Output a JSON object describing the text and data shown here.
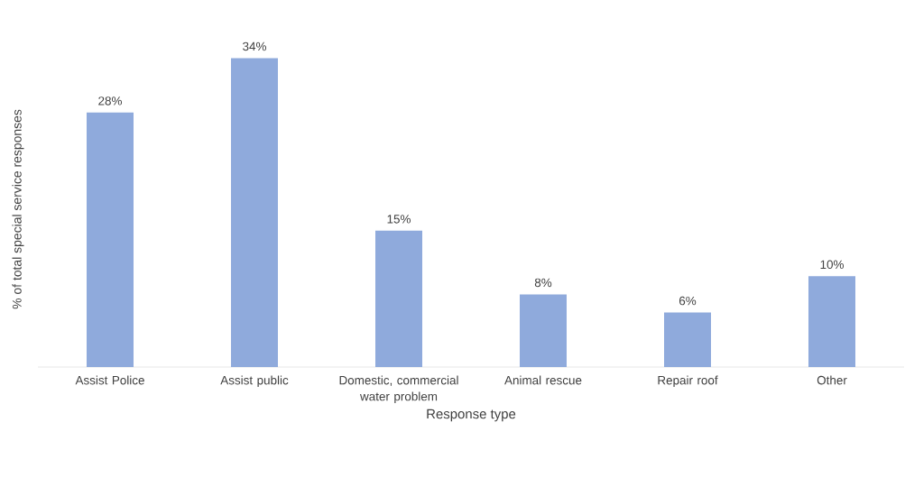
{
  "chart_data": {
    "type": "bar",
    "xlabel": "Response type",
    "ylabel": "% of total special service responses",
    "categories": [
      "Assist Police",
      "Assist public",
      "Domestic, commercial water problem",
      "Animal rescue",
      "Repair roof",
      "Other"
    ],
    "values": [
      28,
      34,
      15,
      8,
      6,
      10
    ],
    "value_labels": [
      "28%",
      "34%",
      "15%",
      "8%",
      "6%",
      "10%"
    ],
    "color": "#8faadc"
  }
}
